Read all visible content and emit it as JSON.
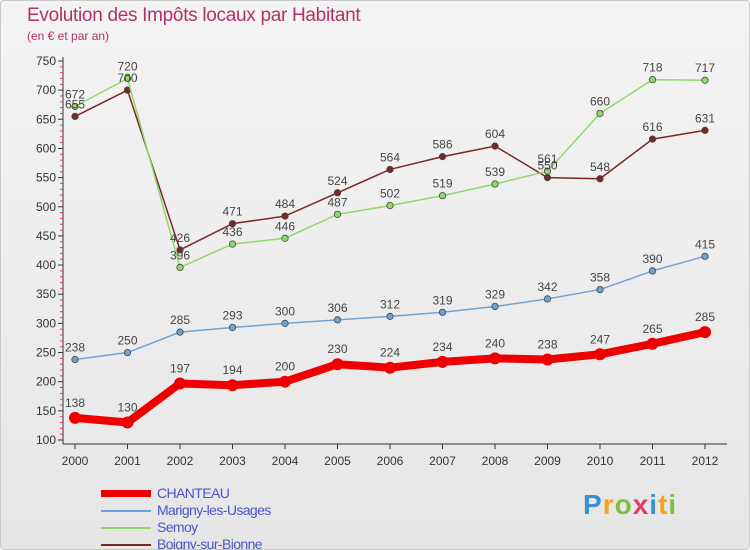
{
  "title": "Evolution des Impôts locaux par Habitant",
  "subtitle": "(en € et par an)",
  "logo": {
    "text": "Proxiti",
    "colors": [
      "#3a8fd9",
      "#f2a516",
      "#7fbf3f",
      "#e23d6c",
      "#3a8fd9",
      "#f2a516",
      "#7fbf3f"
    ]
  },
  "chart_data": {
    "type": "line",
    "x": [
      "2000",
      "2001",
      "2002",
      "2003",
      "2004",
      "2005",
      "2006",
      "2007",
      "2008",
      "2009",
      "2010",
      "2011",
      "2012"
    ],
    "ylim": [
      100,
      750
    ],
    "yticks": [
      100,
      150,
      200,
      250,
      300,
      350,
      400,
      450,
      500,
      550,
      600,
      650,
      700,
      750
    ],
    "grid": false,
    "legend_position": "bottom-left",
    "series": [
      {
        "name": "CHANTEAU",
        "color": "#ee0000",
        "values": [
          138,
          130,
          197,
          194,
          200,
          230,
          224,
          234,
          240,
          238,
          247,
          265,
          285
        ]
      },
      {
        "name": "Marigny-les-Usages",
        "color": "#6fa3d4",
        "values": [
          238,
          250,
          285,
          293,
          300,
          306,
          312,
          319,
          329,
          342,
          358,
          390,
          415
        ]
      },
      {
        "name": "Semoy",
        "color": "#8fd96a",
        "values": [
          672,
          720,
          396,
          436,
          446,
          487,
          502,
          519,
          539,
          561,
          660,
          718,
          717
        ]
      },
      {
        "name": "Boigny-sur-Bionne",
        "color": "#7a2828",
        "values": [
          655,
          700,
          426,
          471,
          484,
          524,
          564,
          586,
          604,
          550,
          548,
          616,
          631
        ]
      }
    ]
  }
}
